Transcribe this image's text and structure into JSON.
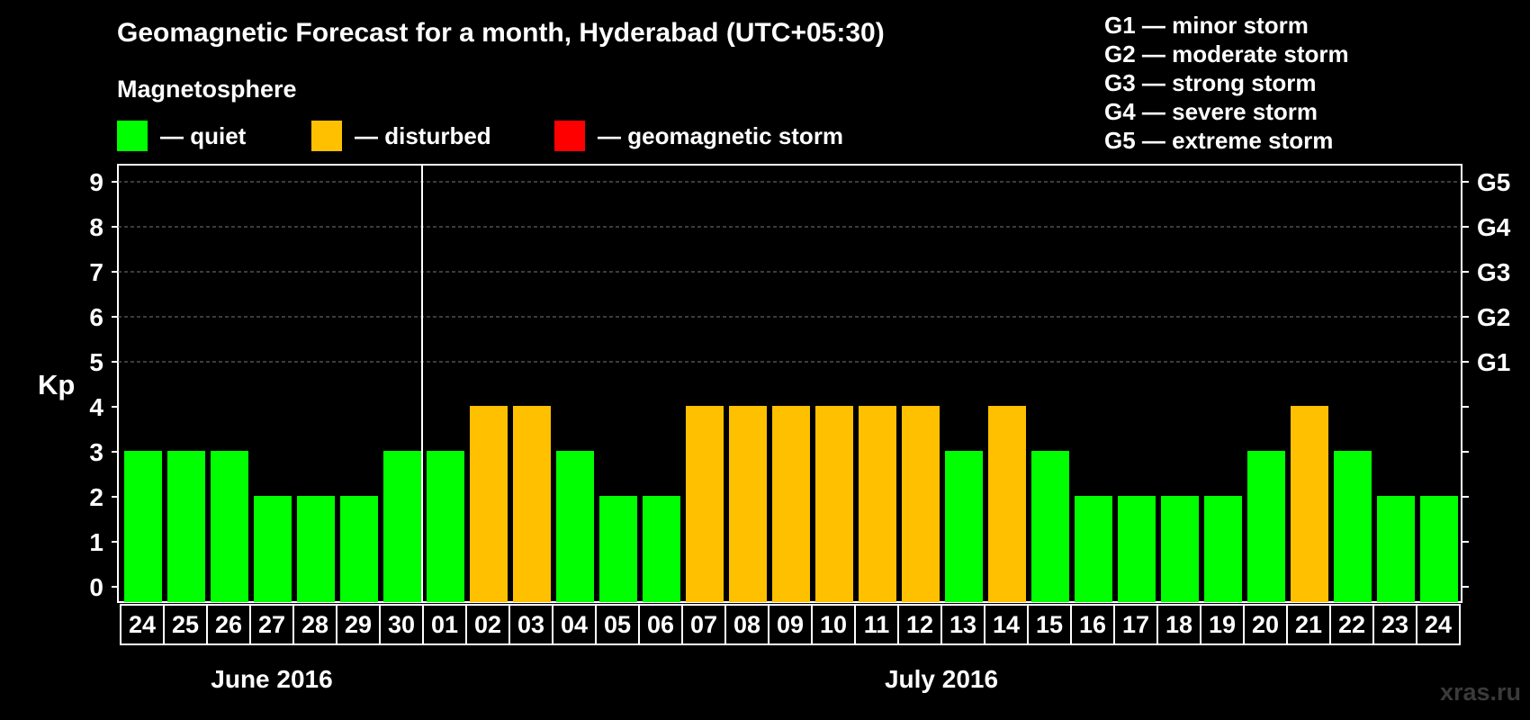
{
  "title": "Geomagnetic Forecast for a month, Hyderabad (UTC+05:30)",
  "magnetosphere_label": "Magnetosphere",
  "legend": [
    {
      "label": "— quiet",
      "color": "#00ff00"
    },
    {
      "label": "— disturbed",
      "color": "#ffc000"
    },
    {
      "label": "— geomagnetic storm",
      "color": "#ff0000"
    }
  ],
  "storm_levels": [
    "G1 — minor storm",
    "G2 — moderate storm",
    "G3 — strong storm",
    "G4 — severe storm",
    "G5 — extreme storm"
  ],
  "watermark": "xras.ru",
  "chart_data": {
    "type": "bar",
    "ylabel": "Kp",
    "ylim": [
      0,
      9
    ],
    "yticks": [
      "0",
      "1",
      "2",
      "3",
      "4",
      "5",
      "6",
      "7",
      "8",
      "9"
    ],
    "right_axis_labels": {
      "5": "G1",
      "6": "G2",
      "7": "G3",
      "8": "G4",
      "9": "G5"
    },
    "grid": true,
    "categories": [
      "24",
      "25",
      "26",
      "27",
      "28",
      "29",
      "30",
      "01",
      "02",
      "03",
      "04",
      "05",
      "06",
      "07",
      "08",
      "09",
      "10",
      "11",
      "12",
      "13",
      "14",
      "15",
      "16",
      "17",
      "18",
      "19",
      "20",
      "21",
      "22",
      "23",
      "24"
    ],
    "values": [
      3,
      3,
      3,
      2,
      2,
      2,
      3,
      3,
      4,
      4,
      3,
      2,
      2,
      4,
      4,
      4,
      4,
      4,
      4,
      3,
      4,
      3,
      2,
      2,
      2,
      2,
      3,
      4,
      3,
      2,
      2
    ],
    "status": [
      "quiet",
      "quiet",
      "quiet",
      "quiet",
      "quiet",
      "quiet",
      "quiet",
      "quiet",
      "disturbed",
      "disturbed",
      "quiet",
      "quiet",
      "quiet",
      "disturbed",
      "disturbed",
      "disturbed",
      "disturbed",
      "disturbed",
      "disturbed",
      "quiet",
      "disturbed",
      "quiet",
      "quiet",
      "quiet",
      "quiet",
      "quiet",
      "quiet",
      "disturbed",
      "quiet",
      "quiet",
      "quiet"
    ],
    "colors": {
      "quiet": "#00ff00",
      "disturbed": "#ffc000",
      "storm": "#ff0000"
    },
    "month_groups": [
      {
        "label": "June 2016",
        "count": 7
      },
      {
        "label": "July 2016",
        "count": 24
      }
    ]
  }
}
